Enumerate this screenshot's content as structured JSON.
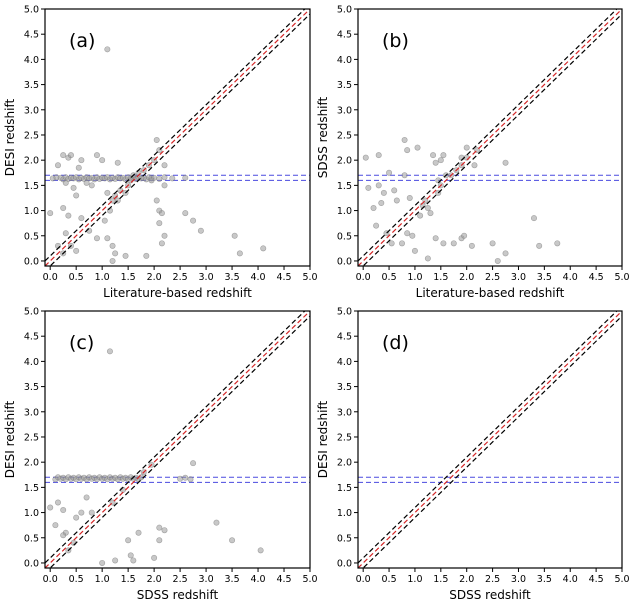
{
  "chart_data": [
    {
      "type": "scatter",
      "panel_label": "(a)",
      "xlabel": "Literature-based redshift",
      "ylabel": "DESI redshift",
      "xlim": [
        -0.1,
        5.0
      ],
      "ylim": [
        -0.1,
        5.0
      ],
      "ticks": [
        "0.0",
        "0.5",
        "1.0",
        "1.5",
        "2.0",
        "2.5",
        "3.0",
        "3.5",
        "4.0",
        "4.5",
        "5.0"
      ],
      "tick_values": [
        0,
        0.5,
        1,
        1.5,
        2,
        2.5,
        3,
        3.5,
        4,
        4.5,
        5
      ],
      "diagonal": {
        "center_color": "#d62728",
        "band_color": "#000000",
        "band_offset": 0.1
      },
      "horizontal_lines": {
        "values": [
          1.6,
          1.7
        ],
        "color": "#4a4adf"
      },
      "points": [
        [
          0.2,
          1.65
        ],
        [
          0.25,
          1.62
        ],
        [
          0.3,
          1.66
        ],
        [
          0.35,
          1.63
        ],
        [
          0.4,
          1.65
        ],
        [
          0.45,
          1.64
        ],
        [
          0.5,
          1.66
        ],
        [
          0.55,
          1.62
        ],
        [
          0.6,
          1.65
        ],
        [
          0.65,
          1.63
        ],
        [
          0.7,
          1.66
        ],
        [
          0.75,
          1.64
        ],
        [
          0.8,
          1.65
        ],
        [
          0.85,
          1.62
        ],
        [
          0.9,
          1.66
        ],
        [
          0.95,
          1.63
        ],
        [
          1.0,
          1.65
        ],
        [
          1.05,
          1.64
        ],
        [
          1.1,
          1.66
        ],
        [
          1.15,
          1.62
        ],
        [
          1.2,
          1.65
        ],
        [
          1.25,
          1.63
        ],
        [
          1.3,
          1.66
        ],
        [
          1.35,
          1.64
        ],
        [
          1.4,
          1.65
        ],
        [
          1.45,
          1.62
        ],
        [
          1.5,
          1.66
        ],
        [
          1.55,
          1.64
        ],
        [
          1.6,
          1.65
        ],
        [
          1.65,
          1.63
        ],
        [
          1.7,
          1.66
        ],
        [
          1.75,
          1.64
        ],
        [
          1.8,
          1.65
        ],
        [
          1.85,
          1.62
        ],
        [
          1.9,
          1.66
        ],
        [
          1.95,
          1.64
        ],
        [
          2.0,
          1.65
        ],
        [
          2.1,
          1.63
        ],
        [
          2.2,
          1.66
        ],
        [
          2.35,
          1.64
        ],
        [
          2.6,
          1.65
        ],
        [
          0.05,
          1.64
        ],
        [
          0.12,
          1.66
        ],
        [
          0.25,
          2.1
        ],
        [
          0.35,
          2.05
        ],
        [
          0.4,
          2.1
        ],
        [
          0.15,
          1.9
        ],
        [
          0.55,
          1.85
        ],
        [
          0.6,
          2.0
        ],
        [
          0.9,
          2.1
        ],
        [
          1.0,
          2.0
        ],
        [
          0.7,
          1.55
        ],
        [
          0.45,
          1.45
        ],
        [
          0.8,
          1.5
        ],
        [
          0.3,
          1.55
        ],
        [
          0.5,
          1.3
        ],
        [
          0.25,
          1.05
        ],
        [
          0.35,
          0.9
        ],
        [
          0.3,
          0.55
        ],
        [
          0.4,
          0.3
        ],
        [
          0.25,
          0.15
        ],
        [
          0.5,
          0.2
        ],
        [
          0.15,
          0.3
        ],
        [
          0.0,
          0.95
        ],
        [
          0.6,
          0.85
        ],
        [
          0.75,
          0.6
        ],
        [
          0.9,
          0.45
        ],
        [
          1.05,
          0.8
        ],
        [
          1.1,
          0.45
        ],
        [
          1.2,
          0.3
        ],
        [
          1.25,
          0.15
        ],
        [
          1.15,
          1.0
        ],
        [
          1.2,
          1.2
        ],
        [
          1.25,
          1.3
        ],
        [
          1.3,
          1.2
        ],
        [
          1.35,
          1.4
        ],
        [
          1.1,
          1.35
        ],
        [
          1.3,
          1.95
        ],
        [
          1.45,
          1.35
        ],
        [
          1.5,
          1.5
        ],
        [
          1.55,
          1.6
        ],
        [
          1.6,
          1.7
        ],
        [
          1.7,
          1.75
        ],
        [
          1.8,
          1.8
        ],
        [
          1.9,
          1.9
        ],
        [
          2.0,
          2.0
        ],
        [
          2.1,
          2.2
        ],
        [
          2.05,
          2.4
        ],
        [
          2.2,
          1.9
        ],
        [
          1.95,
          1.6
        ],
        [
          2.05,
          1.2
        ],
        [
          2.1,
          1.0
        ],
        [
          2.15,
          0.95
        ],
        [
          2.1,
          0.75
        ],
        [
          2.2,
          0.5
        ],
        [
          2.15,
          0.35
        ],
        [
          2.6,
          0.95
        ],
        [
          2.75,
          0.8
        ],
        [
          2.9,
          0.6
        ],
        [
          1.45,
          0.1
        ],
        [
          1.2,
          0.0
        ],
        [
          1.1,
          4.2
        ],
        [
          3.55,
          0.5
        ],
        [
          3.65,
          0.15
        ],
        [
          4.1,
          0.25
        ],
        [
          2.2,
          1.5
        ],
        [
          1.85,
          0.1
        ]
      ]
    },
    {
      "type": "scatter",
      "panel_label": "(b)",
      "xlabel": "Literature-based redshift",
      "ylabel": "SDSS redshift",
      "xlim": [
        -0.1,
        5.0
      ],
      "ylim": [
        -0.1,
        5.0
      ],
      "ticks": [
        "0.0",
        "0.5",
        "1.0",
        "1.5",
        "2.0",
        "2.5",
        "3.0",
        "3.5",
        "4.0",
        "4.5",
        "5.0"
      ],
      "tick_values": [
        0,
        0.5,
        1,
        1.5,
        2,
        2.5,
        3,
        3.5,
        4,
        4.5,
        5
      ],
      "diagonal": {
        "center_color": "#d62728",
        "band_color": "#000000",
        "band_offset": 0.1
      },
      "horizontal_lines": {
        "values": [
          1.6,
          1.7
        ],
        "color": "#4a4adf"
      },
      "points": [
        [
          0.05,
          2.05
        ],
        [
          0.3,
          2.1
        ],
        [
          0.8,
          2.4
        ],
        [
          0.85,
          2.2
        ],
        [
          1.05,
          2.25
        ],
        [
          1.35,
          2.1
        ],
        [
          1.4,
          1.95
        ],
        [
          1.5,
          2.0
        ],
        [
          1.55,
          2.1
        ],
        [
          1.9,
          2.05
        ],
        [
          2.0,
          2.25
        ],
        [
          2.2,
          2.2
        ],
        [
          2.15,
          1.9
        ],
        [
          1.45,
          1.6
        ],
        [
          0.8,
          1.7
        ],
        [
          0.5,
          1.75
        ],
        [
          0.3,
          1.5
        ],
        [
          0.1,
          1.45
        ],
        [
          0.4,
          1.35
        ],
        [
          0.6,
          1.4
        ],
        [
          0.2,
          1.05
        ],
        [
          0.35,
          1.15
        ],
        [
          0.25,
          0.7
        ],
        [
          0.45,
          0.55
        ],
        [
          0.55,
          0.35
        ],
        [
          0.75,
          0.35
        ],
        [
          0.85,
          0.55
        ],
        [
          1.0,
          0.2
        ],
        [
          0.95,
          0.5
        ],
        [
          1.15,
          1.1
        ],
        [
          1.2,
          1.2
        ],
        [
          1.25,
          1.05
        ],
        [
          1.3,
          0.95
        ],
        [
          1.1,
          0.9
        ],
        [
          1.45,
          1.35
        ],
        [
          1.5,
          1.5
        ],
        [
          1.6,
          1.7
        ],
        [
          1.7,
          1.7
        ],
        [
          1.8,
          1.8
        ],
        [
          1.9,
          1.9
        ],
        [
          2.0,
          2.05
        ],
        [
          1.4,
          0.45
        ],
        [
          1.55,
          0.35
        ],
        [
          1.75,
          0.35
        ],
        [
          1.9,
          0.45
        ],
        [
          1.95,
          0.5
        ],
        [
          2.1,
          0.3
        ],
        [
          2.5,
          0.35
        ],
        [
          2.6,
          0.0
        ],
        [
          2.75,
          0.15
        ],
        [
          2.75,
          1.95
        ],
        [
          3.3,
          0.85
        ],
        [
          3.4,
          0.3
        ],
        [
          3.75,
          0.35
        ],
        [
          1.25,
          0.05
        ],
        [
          0.65,
          1.2
        ],
        [
          0.9,
          1.25
        ]
      ]
    },
    {
      "type": "scatter",
      "panel_label": "(c)",
      "xlabel": "SDSS redshift",
      "ylabel": "DESI redshift",
      "xlim": [
        -0.1,
        5.0
      ],
      "ylim": [
        -0.1,
        5.0
      ],
      "ticks": [
        "0.0",
        "0.5",
        "1.0",
        "1.5",
        "2.0",
        "2.5",
        "3.0",
        "3.5",
        "4.0",
        "4.5",
        "5.0"
      ],
      "tick_values": [
        0,
        0.5,
        1,
        1.5,
        2,
        2.5,
        3,
        3.5,
        4,
        4.5,
        5
      ],
      "diagonal": {
        "center_color": "#d62728",
        "band_color": "#000000",
        "band_offset": 0.1
      },
      "horizontal_lines": {
        "values": [
          1.6,
          1.7
        ],
        "color": "#4a4adf"
      },
      "points": [
        [
          0.1,
          1.66
        ],
        [
          0.15,
          1.7
        ],
        [
          0.2,
          1.67
        ],
        [
          0.25,
          1.69
        ],
        [
          0.3,
          1.66
        ],
        [
          0.35,
          1.7
        ],
        [
          0.4,
          1.67
        ],
        [
          0.45,
          1.69
        ],
        [
          0.5,
          1.66
        ],
        [
          0.55,
          1.7
        ],
        [
          0.6,
          1.67
        ],
        [
          0.65,
          1.69
        ],
        [
          0.7,
          1.66
        ],
        [
          0.75,
          1.7
        ],
        [
          0.8,
          1.67
        ],
        [
          0.85,
          1.69
        ],
        [
          0.9,
          1.66
        ],
        [
          0.95,
          1.7
        ],
        [
          1.0,
          1.67
        ],
        [
          1.05,
          1.69
        ],
        [
          1.1,
          1.66
        ],
        [
          1.15,
          1.7
        ],
        [
          1.2,
          1.67
        ],
        [
          1.25,
          1.69
        ],
        [
          1.3,
          1.66
        ],
        [
          1.35,
          1.7
        ],
        [
          1.4,
          1.67
        ],
        [
          1.45,
          1.69
        ],
        [
          1.5,
          1.66
        ],
        [
          1.55,
          1.7
        ],
        [
          1.6,
          1.67
        ],
        [
          1.65,
          1.69
        ],
        [
          1.7,
          1.66
        ],
        [
          1.75,
          1.7
        ],
        [
          2.5,
          1.67
        ],
        [
          2.6,
          1.69
        ],
        [
          2.7,
          1.66
        ],
        [
          2.75,
          1.98
        ],
        [
          0.0,
          1.1
        ],
        [
          0.15,
          1.2
        ],
        [
          0.25,
          1.05
        ],
        [
          0.1,
          0.75
        ],
        [
          0.3,
          0.6
        ],
        [
          0.5,
          0.9
        ],
        [
          0.6,
          1.0
        ],
        [
          0.35,
          0.25
        ],
        [
          0.45,
          0.4
        ],
        [
          0.25,
          0.55
        ],
        [
          0.7,
          1.3
        ],
        [
          0.8,
          1.0
        ],
        [
          1.0,
          0.0
        ],
        [
          1.25,
          0.05
        ],
        [
          1.5,
          0.45
        ],
        [
          1.6,
          0.05
        ],
        [
          1.7,
          0.6
        ],
        [
          1.55,
          0.15
        ],
        [
          2.0,
          0.1
        ],
        [
          2.1,
          0.7
        ],
        [
          2.2,
          0.65
        ],
        [
          2.1,
          0.45
        ],
        [
          3.2,
          0.8
        ],
        [
          3.5,
          0.45
        ],
        [
          4.05,
          0.25
        ],
        [
          1.15,
          4.2
        ],
        [
          1.2,
          1.2
        ],
        [
          1.4,
          1.45
        ],
        [
          1.8,
          1.8
        ],
        [
          1.95,
          1.95
        ]
      ]
    },
    {
      "type": "scatter",
      "panel_label": "(d)",
      "xlabel": "SDSS redshift",
      "ylabel": "DESI redshift",
      "xlim": [
        -0.1,
        5.0
      ],
      "ylim": [
        -0.1,
        5.0
      ],
      "ticks": [
        "0.0",
        "0.5",
        "1.0",
        "1.5",
        "2.0",
        "2.5",
        "3.0",
        "3.5",
        "4.0",
        "4.5",
        "5.0"
      ],
      "tick_values": [
        0,
        0.5,
        1,
        1.5,
        2,
        2.5,
        3,
        3.5,
        4,
        4.5,
        5
      ],
      "diagonal": {
        "center_color": "#d62728",
        "band_color": "#000000",
        "band_offset": 0.1
      },
      "horizontal_lines": {
        "values": [
          1.6,
          1.7
        ],
        "color": "#4a4adf"
      },
      "points": []
    }
  ]
}
